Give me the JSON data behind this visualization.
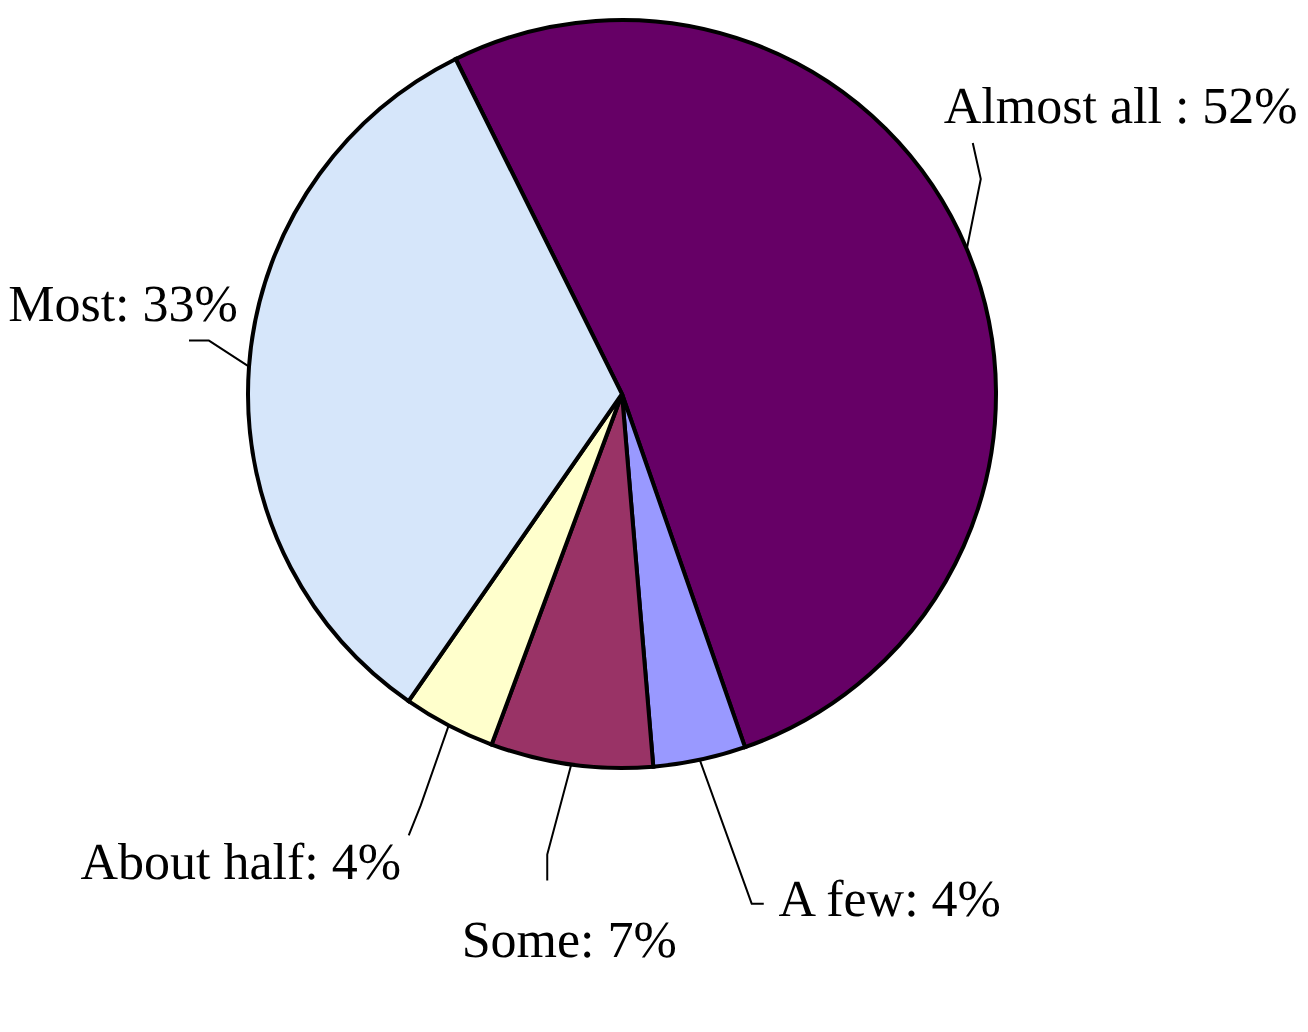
{
  "chart_data": {
    "type": "pie",
    "categories": [
      "Almost all ",
      "A few",
      "Some",
      "About half",
      "Most"
    ],
    "values": [
      52,
      4,
      7,
      4,
      33
    ],
    "colors": [
      "#660066",
      "#9999ff",
      "#993366",
      "#ffffcc",
      "#d6e6fa"
    ],
    "value_labels": [
      "52%",
      "4%",
      "7%",
      "4%",
      "33%"
    ]
  }
}
